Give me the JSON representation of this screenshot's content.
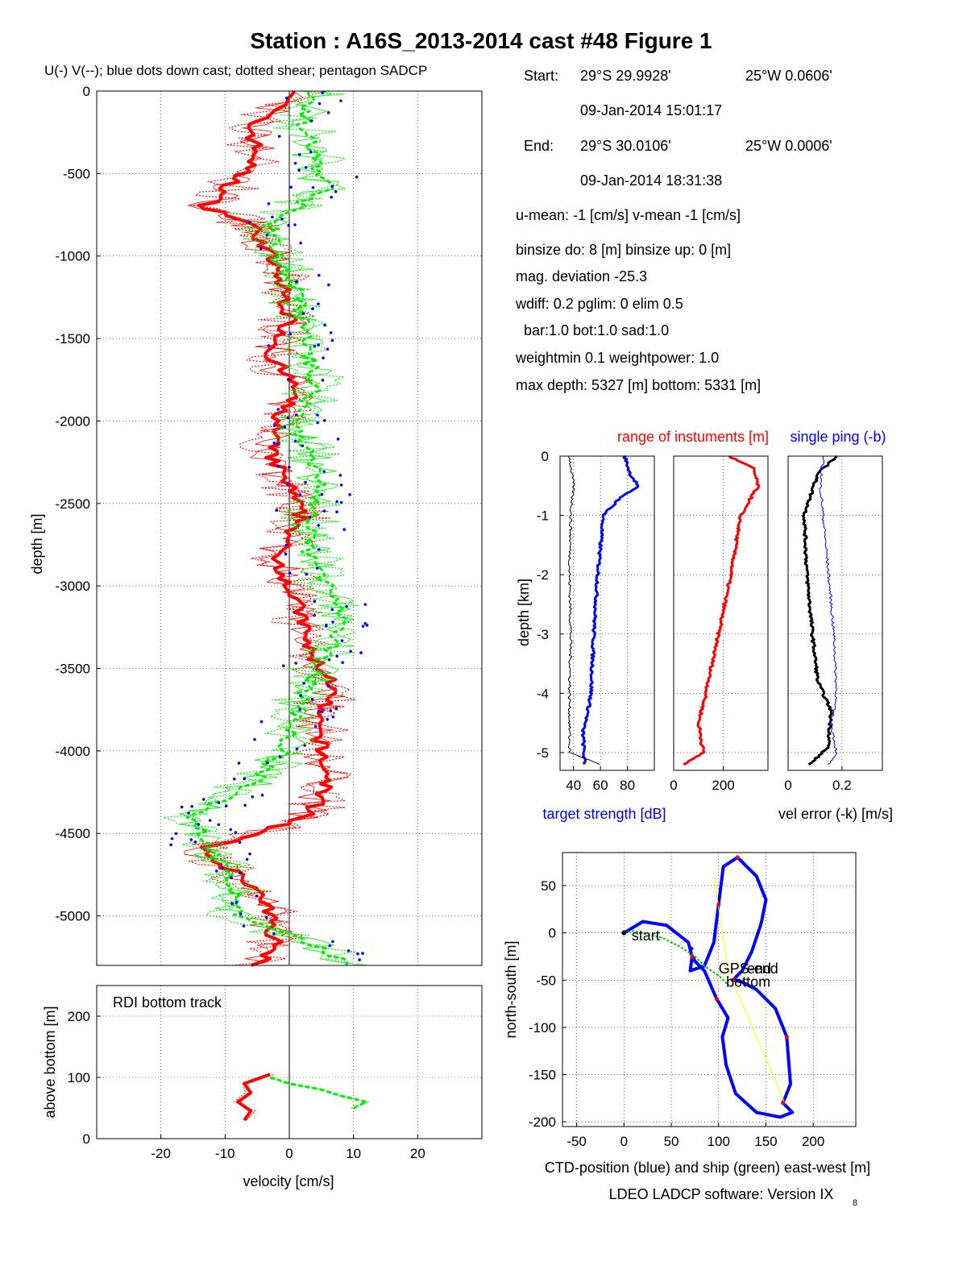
{
  "figure": {
    "title": "Station : A16S_2013-2014 cast #48  Figure 1",
    "footer": "LDEO LADCP software: Version IX",
    "footer_sub": "8"
  },
  "info": {
    "start_label": "Start:",
    "start_lat": "29°S 29.9928'",
    "start_lon": "25°W  0.0606'",
    "start_time": "09-Jan-2014 15:01:17",
    "end_label": "End:",
    "end_lat": "29°S 30.0106'",
    "end_lon": "25°W  0.0006'",
    "end_time": "09-Jan-2014 18:31:38",
    "means": "u-mean:  -1 [cm/s]    v-mean  -1 [cm/s]",
    "binsize": "binsize do: 8 [m]  binsize up:  0 [m]",
    "magdev": "mag. deviation -25.3",
    "wdiff": "wdiff: 0.2  pglim: 0  elim 0.5",
    "bar": "bar:1.0 bot:1.0 sad:1.0",
    "weight": "weightmin 0.1  weightpower: 1.0",
    "maxdepth": "max depth: 5327 [m]   bottom: 5331 [m]"
  },
  "colors": {
    "u": "#ff0000",
    "v": "#00ee00",
    "downcast": "#0000ff",
    "ctd": "#0000ff",
    "ship": "#00cc00",
    "shipline": "#ffff00",
    "text_red": "#ff0000",
    "text_blue": "#0000ff"
  },
  "chart_data": [
    {
      "type": "line",
      "panel": "velocity-profile",
      "title": "U(-) V(--); blue dots down cast; dotted shear; pentagon SADCP",
      "xlabel": "",
      "ylabel": "depth [m]",
      "xlim": [
        -30,
        30
      ],
      "ylim": [
        -5300,
        0
      ],
      "xticks": [
        -20,
        -10,
        0,
        10,
        20
      ],
      "yticks": [
        0,
        -500,
        -1000,
        -1500,
        -2000,
        -2500,
        -3000,
        -3500,
        -4000,
        -4500,
        -5000
      ],
      "ytick_labels": [
        "0",
        "-500",
        "-1000",
        "-1500",
        "-2000",
        "-2500",
        "-3000",
        "-3500",
        "-4000",
        "-4500",
        "-5000"
      ],
      "grid": true,
      "series": [
        {
          "key": "u",
          "color": "#ff0000",
          "depth": [
            0,
            -200,
            -400,
            -600,
            -700,
            -800,
            -1000,
            -1200,
            -1400,
            -1600,
            -1800,
            -2000,
            -2200,
            -2400,
            -2600,
            -2800,
            -3000,
            -3200,
            -3400,
            -3600,
            -3800,
            -4000,
            -4200,
            -4400,
            -4600,
            -4800,
            -5000,
            -5200,
            -5300
          ],
          "values": [
            2,
            -6,
            -5,
            -10,
            -13,
            -6,
            -3,
            -1,
            0,
            -3,
            1,
            -2,
            -3,
            0,
            2,
            -2,
            0,
            2,
            3,
            7,
            4,
            5,
            6,
            3,
            -14,
            -6,
            -3,
            -2,
            -5
          ]
        },
        {
          "key": "v",
          "color": "#00ee00",
          "depth": [
            0,
            -200,
            -400,
            -600,
            -700,
            -800,
            -1000,
            -1200,
            -1400,
            -1600,
            -1800,
            -2000,
            -2200,
            -2400,
            -2600,
            -2800,
            -3000,
            -3200,
            -3400,
            -3600,
            -3800,
            -4000,
            -4200,
            -4400,
            -4600,
            -4800,
            -5000,
            -5200,
            -5300
          ],
          "values": [
            4,
            2,
            4,
            6,
            1,
            -3,
            -2,
            1,
            2,
            3,
            4,
            1,
            3,
            5,
            3,
            3,
            6,
            8,
            6,
            3,
            1,
            -1,
            -6,
            -15,
            -12,
            -9,
            -8,
            5,
            10
          ]
        }
      ]
    },
    {
      "type": "line",
      "panel": "bottom-track",
      "title": "RDI bottom track",
      "xlabel": "velocity [cm/s]",
      "ylabel": "above bottom [m]",
      "xlim": [
        -30,
        30
      ],
      "ylim": [
        0,
        250
      ],
      "xticks": [
        -20,
        -10,
        0,
        10,
        20
      ],
      "yticks": [
        0,
        100,
        200
      ],
      "series": [
        {
          "key": "u",
          "color": "#ff0000",
          "height": [
            30,
            45,
            60,
            75,
            90,
            105
          ],
          "values": [
            -7,
            -6,
            -8,
            -6,
            -7,
            -3
          ]
        },
        {
          "key": "v",
          "color": "#00ee00",
          "height": [
            50,
            60,
            70,
            80,
            90,
            100
          ],
          "values": [
            10,
            12,
            8,
            5,
            0,
            -3
          ]
        }
      ]
    },
    {
      "type": "line",
      "panel": "target-strength",
      "title": "",
      "xlabel": "target strength [dB]",
      "ylabel": "depth [km]",
      "xlim": [
        30,
        100
      ],
      "ylim": [
        -5.3,
        0
      ],
      "xticks": [
        40,
        60,
        80
      ],
      "yticks": [
        0,
        -1,
        -2,
        -3,
        -4,
        -5
      ],
      "series": [
        {
          "key": "ts",
          "color": "#0000ff",
          "depth": [
            0,
            -0.3,
            -0.5,
            -0.7,
            -1.0,
            -2.0,
            -3.0,
            -4.0,
            -4.4,
            -4.6,
            -5.2
          ],
          "values": [
            78,
            82,
            88,
            75,
            62,
            58,
            55,
            53,
            50,
            47,
            48
          ]
        },
        {
          "key": "ts-min",
          "color": "#000000",
          "depth": [
            0,
            -0.5,
            -1.0,
            -2.0,
            -3.0,
            -4.0,
            -5.0,
            -5.2
          ],
          "values": [
            37,
            40,
            38,
            37,
            38,
            37,
            37,
            60
          ]
        }
      ]
    },
    {
      "type": "line",
      "panel": "instrument-range",
      "title": "range of instuments [m]",
      "xlabel": "",
      "ylabel": "",
      "xlim": [
        0,
        380
      ],
      "ylim": [
        -5.3,
        0
      ],
      "xticks": [
        0,
        200
      ],
      "series": [
        {
          "key": "range",
          "color": "#ff0000",
          "depth": [
            0,
            -0.2,
            -0.5,
            -1.0,
            -2.0,
            -3.0,
            -4.0,
            -4.5,
            -5.0,
            -5.2
          ],
          "values": [
            220,
            320,
            340,
            270,
            230,
            180,
            130,
            100,
            120,
            40
          ]
        }
      ]
    },
    {
      "type": "line",
      "panel": "velocity-error",
      "title": "single ping (-b)",
      "xlabel": "vel error (-k) [m/s]",
      "ylabel": "",
      "xlim": [
        0,
        0.35
      ],
      "ylim": [
        -5.3,
        0
      ],
      "xticks": [
        0,
        0.2
      ],
      "xtick_labels": [
        "0",
        "0.2"
      ],
      "series": [
        {
          "key": "vel-error",
          "color": "#000000",
          "depth": [
            0,
            -0.3,
            -1.0,
            -2.0,
            -3.0,
            -3.8,
            -4.3,
            -4.9,
            -5.2
          ],
          "values": [
            0.18,
            0.11,
            0.06,
            0.07,
            0.09,
            0.11,
            0.16,
            0.15,
            0.08
          ]
        },
        {
          "key": "single-ping",
          "color": "#0000ff",
          "depth": [
            0,
            -0.5,
            -1.0,
            -2.0,
            -3.0,
            -4.0,
            -4.5,
            -5.0,
            -5.2
          ],
          "values": [
            0.13,
            0.12,
            0.13,
            0.15,
            0.17,
            0.18,
            0.16,
            0.18,
            0.15
          ]
        }
      ]
    },
    {
      "type": "line",
      "panel": "track",
      "title": "",
      "xlabel": "CTD-position (blue) and ship (green) east-west [m]",
      "ylabel": "north-south [m]",
      "xlim": [
        -65,
        245
      ],
      "ylim": [
        -205,
        85
      ],
      "xticks": [
        -50,
        0,
        50,
        100,
        150,
        200
      ],
      "yticks": [
        50,
        0,
        -50,
        -100,
        -150,
        -200
      ],
      "series": [
        {
          "key": "ctd",
          "color": "#0000ff",
          "x": [
            0,
            20,
            45,
            68,
            72,
            70,
            85,
            95,
            100,
            105,
            120,
            140,
            150,
            145,
            135,
            125,
            115,
            125,
            140,
            160,
            172,
            176,
            168,
            178,
            165,
            140,
            118,
            108,
            104,
            110,
            98,
            85,
            75,
            70,
            72
          ],
          "y": [
            0,
            12,
            8,
            -10,
            -25,
            -40,
            -35,
            -10,
            30,
            70,
            80,
            60,
            35,
            10,
            -20,
            -40,
            -50,
            -52,
            -60,
            -80,
            -110,
            -160,
            -180,
            -190,
            -195,
            -190,
            -170,
            -140,
            -110,
            -90,
            -70,
            -40,
            -30,
            -20,
            -15
          ]
        },
        {
          "key": "ship",
          "color": "#00cc00",
          "x": [
            0,
            10,
            20,
            40,
            60,
            75,
            85,
            100,
            110
          ],
          "y": [
            0,
            2,
            0,
            -5,
            -15,
            -25,
            -35,
            -45,
            -55
          ]
        },
        {
          "key": "ship-line",
          "color": "#ffff00",
          "x": [
            95,
            110,
            170
          ],
          "y": [
            60,
            -40,
            -180
          ]
        }
      ],
      "annotations": [
        {
          "text": "start",
          "x": 8,
          "y": -3
        },
        {
          "text": "GPS-end",
          "x": 100,
          "y": -38
        },
        {
          "text": "end",
          "x": 130,
          "y": -38
        },
        {
          "text": "bottom",
          "x": 108,
          "y": -52
        }
      ]
    }
  ]
}
